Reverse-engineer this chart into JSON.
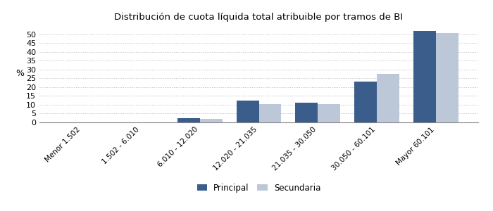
{
  "title": "Distribución de cuota líquida total atribuible por tramos de BI",
  "categories": [
    "Menor 1.502",
    "1.502 - 6.010",
    "6.010 - 12.020",
    "12.020 - 21.035",
    "21.035 - 30.050",
    "30.050 - 60.101",
    "Mayor 60.101"
  ],
  "principal": [
    0,
    0,
    2.5,
    12.5,
    11.2,
    23.0,
    52.0
  ],
  "secundaria": [
    0,
    0,
    2.0,
    10.3,
    10.5,
    27.5,
    50.5
  ],
  "color_principal": "#3A5D8C",
  "color_secundaria": "#BCC8D8",
  "ylabel": "%",
  "ylim": [
    0,
    55
  ],
  "yticks": [
    0,
    5,
    10,
    15,
    20,
    25,
    30,
    35,
    40,
    45,
    50
  ],
  "legend_labels": [
    "Principal",
    "Secundaria"
  ],
  "bar_width": 0.38,
  "background_color": "#ffffff",
  "grid_color": "#bbbbbb"
}
